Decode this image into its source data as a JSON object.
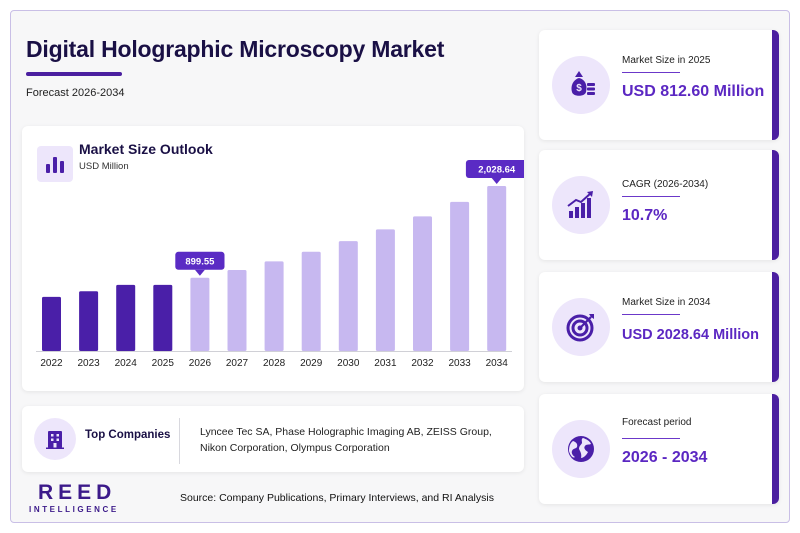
{
  "header": {
    "title": "Digital Holographic Microscopy Market",
    "subtitle": "Forecast 2026-2034"
  },
  "chart_card": {
    "title": "Market Size Outlook",
    "unit": "USD Million",
    "icon": "bar-chart-icon"
  },
  "chart_data": {
    "type": "bar",
    "title": "Market Size Outlook",
    "ylabel": "USD Million",
    "categories": [
      "2022",
      "2023",
      "2024",
      "2025",
      "2026",
      "2027",
      "2028",
      "2029",
      "2030",
      "2031",
      "2032",
      "2033",
      "2034"
    ],
    "values": [
      665,
      735,
      812,
      812.6,
      899.55,
      996,
      1102,
      1220,
      1351,
      1495,
      1655,
      1833,
      2028.64
    ],
    "segments": [
      "historical",
      "historical",
      "historical",
      "historical",
      "forecast",
      "forecast",
      "forecast",
      "forecast",
      "forecast",
      "forecast",
      "forecast",
      "forecast",
      "forecast"
    ],
    "labeled_points": [
      {
        "category": "2026",
        "label": "899.55"
      },
      {
        "category": "2034",
        "label": "2,028.64"
      }
    ],
    "colors": {
      "historical": "#4a1fa8",
      "forecast": "#c7b8f0",
      "callout": "#5a2bc4"
    },
    "ylim": [
      0,
      2200
    ],
    "grid": false,
    "legend": "none"
  },
  "companies": {
    "label": "Top Companies",
    "icon": "building-icon",
    "list": "Lyncee Tec SA, Phase Holographic Imaging AB, ZEISS Group, Nikon Corporation, Olympus Corporation"
  },
  "stats": [
    {
      "label": "Market Size in 2025",
      "value": "USD 812.60 Million",
      "icon": "money-bag-icon"
    },
    {
      "label": "CAGR (2026-2034)",
      "value": "10.7%",
      "icon": "growth-chart-icon"
    },
    {
      "label": "Market Size in 2034",
      "value": "USD 2028.64 Million",
      "icon": "target-icon"
    },
    {
      "label": "Forecast period",
      "value": "2026 - 2034",
      "icon": "globe-icon"
    }
  ],
  "footer": {
    "logo_main": "REED",
    "logo_sub": "INTELLIGENCE",
    "source": "Source: Company Publications, Primary Interviews, and RI Analysis"
  },
  "colors": {
    "accent": "#4b1fa0",
    "accent_light": "#ede6fb",
    "value_text": "#5b27c2"
  }
}
